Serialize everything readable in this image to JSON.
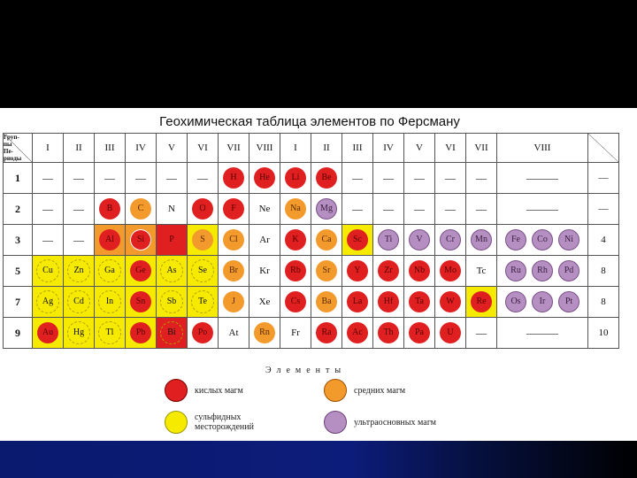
{
  "title": "Геохимическая таблица элементов по Ферсману",
  "header": {
    "corner": [
      "Груп-",
      "пы",
      "Пе-",
      "риоды"
    ],
    "groups_left": [
      "I",
      "II",
      "III",
      "IV",
      "V",
      "VI",
      "VII",
      "VIII"
    ],
    "groups_right": [
      "I",
      "II",
      "III",
      "IV",
      "V",
      "VI",
      "VII",
      "VIII"
    ]
  },
  "rows": [
    {
      "label": "1",
      "right": "—",
      "cells": [
        {
          "t": "—",
          "k": "dash"
        },
        {
          "t": "—",
          "k": "dash"
        },
        {
          "t": "—",
          "k": "dash"
        },
        {
          "t": "—",
          "k": "dash"
        },
        {
          "t": "—",
          "k": "dash"
        },
        {
          "t": "—",
          "k": "dash"
        },
        {
          "t": "H",
          "k": "r"
        },
        {
          "t": "He",
          "k": "r"
        },
        {
          "t": "Li",
          "k": "r"
        },
        {
          "t": "Be",
          "k": "r"
        },
        {
          "t": "—",
          "k": "dash"
        },
        {
          "t": "—",
          "k": "dash"
        },
        {
          "t": "—",
          "k": "dash"
        },
        {
          "t": "—",
          "k": "dash"
        },
        {
          "t": "—",
          "k": "dash"
        },
        {
          "t": "———",
          "k": "dash"
        }
      ]
    },
    {
      "label": "2",
      "right": "—",
      "cells": [
        {
          "t": "—",
          "k": "dash"
        },
        {
          "t": "—",
          "k": "dash"
        },
        {
          "t": "B",
          "k": "r"
        },
        {
          "t": "C",
          "k": "o"
        },
        {
          "t": "N",
          "k": "text"
        },
        {
          "t": "O",
          "k": "r"
        },
        {
          "t": "F",
          "k": "r"
        },
        {
          "t": "Ne",
          "k": "text"
        },
        {
          "t": "Na",
          "k": "o"
        },
        {
          "t": "Mg",
          "k": "p"
        },
        {
          "t": "—",
          "k": "dash"
        },
        {
          "t": "—",
          "k": "dash"
        },
        {
          "t": "—",
          "k": "dash"
        },
        {
          "t": "—",
          "k": "dash"
        },
        {
          "t": "—",
          "k": "dash"
        },
        {
          "t": "———",
          "k": "dash"
        }
      ]
    },
    {
      "label": "3",
      "right": "4",
      "cells": [
        {
          "t": "—",
          "k": "dash"
        },
        {
          "t": "—",
          "k": "dash"
        },
        {
          "t": "Al",
          "k": "r",
          "bg": "obg"
        },
        {
          "t": "Si",
          "k": "rin",
          "bg": "obg"
        },
        {
          "t": "P",
          "k": "r",
          "bg": "rbg"
        },
        {
          "t": "S",
          "k": "o",
          "bg": "ybg"
        },
        {
          "t": "Cl",
          "k": "o"
        },
        {
          "t": "Ar",
          "k": "text"
        },
        {
          "t": "K",
          "k": "r"
        },
        {
          "t": "Ca",
          "k": "o"
        },
        {
          "t": "Sc",
          "k": "r",
          "bg": "ybg"
        },
        {
          "t": "Ti",
          "k": "p"
        },
        {
          "t": "V",
          "k": "p"
        },
        {
          "t": "Cr",
          "k": "p"
        },
        {
          "t": "Mn",
          "k": "p"
        },
        {
          "t": "Fe Co Ni",
          "k": "p3"
        }
      ]
    },
    {
      "label": "5",
      "right": "8",
      "cells": [
        {
          "t": "Cu",
          "k": "y",
          "bg": "ybg"
        },
        {
          "t": "Zn",
          "k": "y",
          "bg": "ybg"
        },
        {
          "t": "Ga",
          "k": "y",
          "bg": "ybg"
        },
        {
          "t": "Ge",
          "k": "r",
          "bg": "ybg"
        },
        {
          "t": "As",
          "k": "y",
          "bg": "ybg"
        },
        {
          "t": "Se",
          "k": "y",
          "bg": "ybg"
        },
        {
          "t": "Br",
          "k": "o"
        },
        {
          "t": "Kr",
          "k": "text"
        },
        {
          "t": "Rb",
          "k": "r"
        },
        {
          "t": "Sr",
          "k": "o"
        },
        {
          "t": "Y",
          "k": "r"
        },
        {
          "t": "Zr",
          "k": "r"
        },
        {
          "t": "Nb",
          "k": "r"
        },
        {
          "t": "Mo",
          "k": "r"
        },
        {
          "t": "Tc",
          "k": "text"
        },
        {
          "t": "Ru Rh Pd",
          "k": "p3"
        }
      ]
    },
    {
      "label": "7",
      "right": "8",
      "cells": [
        {
          "t": "Ag",
          "k": "y",
          "bg": "ybg"
        },
        {
          "t": "Cd",
          "k": "y",
          "bg": "ybg"
        },
        {
          "t": "In",
          "k": "y",
          "bg": "ybg"
        },
        {
          "t": "Sn",
          "k": "r",
          "bg": "ybg"
        },
        {
          "t": "Sb",
          "k": "y",
          "bg": "ybg"
        },
        {
          "t": "Te",
          "k": "y",
          "bg": "ybg"
        },
        {
          "t": "J",
          "k": "o"
        },
        {
          "t": "Xe",
          "k": "text"
        },
        {
          "t": "Cs",
          "k": "r"
        },
        {
          "t": "Ba",
          "k": "o"
        },
        {
          "t": "La",
          "k": "r"
        },
        {
          "t": "Hf",
          "k": "r"
        },
        {
          "t": "Ta",
          "k": "r"
        },
        {
          "t": "W",
          "k": "r"
        },
        {
          "t": "Re",
          "k": "r",
          "bg": "ybg"
        },
        {
          "t": "Os Ir Pt",
          "k": "p3"
        }
      ]
    },
    {
      "label": "9",
      "right": "10",
      "cells": [
        {
          "t": "Au",
          "k": "r",
          "bg": "ybg"
        },
        {
          "t": "Hg",
          "k": "y",
          "bg": "ybg"
        },
        {
          "t": "Tl",
          "k": "y",
          "bg": "ybg"
        },
        {
          "t": "Pb",
          "k": "r",
          "bg": "ybg"
        },
        {
          "t": "Bi",
          "k": "y",
          "bg": "rbg"
        },
        {
          "t": "Po",
          "k": "r"
        },
        {
          "t": "At",
          "k": "text"
        },
        {
          "t": "Rn",
          "k": "o"
        },
        {
          "t": "Fr",
          "k": "text"
        },
        {
          "t": "Ra",
          "k": "r"
        },
        {
          "t": "Ac",
          "k": "r"
        },
        {
          "t": "Th",
          "k": "r"
        },
        {
          "t": "Pa",
          "k": "r"
        },
        {
          "t": "U",
          "k": "r"
        },
        {
          "t": "—",
          "k": "dash"
        },
        {
          "t": "———",
          "k": "dash"
        }
      ]
    }
  ],
  "legend": {
    "title": "Элементы",
    "items": [
      {
        "label": "кислых магм",
        "color": "#e02020",
        "border": "#7a0000"
      },
      {
        "label": "средних магм",
        "color": "#f39a2c",
        "border": "#a05000"
      },
      {
        "label": "сульфидных месторождений",
        "color": "#f5ea00",
        "border": "#999900"
      },
      {
        "label": "ультраосновных магм",
        "color": "#b58ec2",
        "border": "#6a4078"
      }
    ]
  },
  "colors": {
    "acid": "#e02020",
    "middle": "#f39a2c",
    "sulfide": "#f5ea00",
    "ultrabasic": "#b58ec2"
  }
}
